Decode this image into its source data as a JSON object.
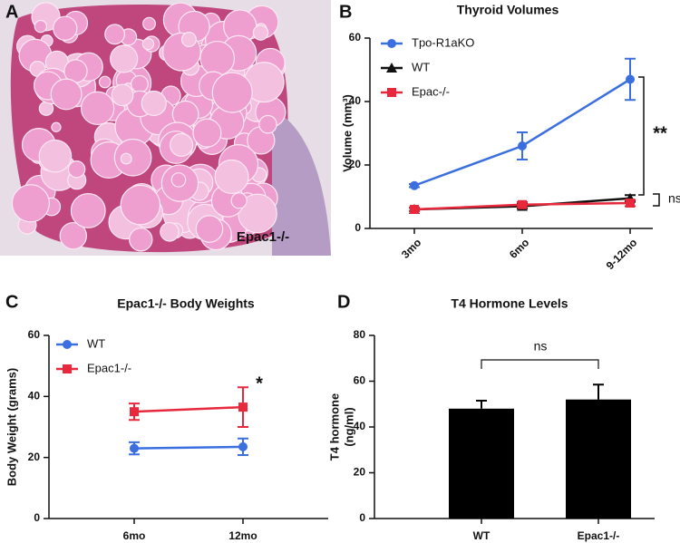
{
  "chart_data": [
    {
      "type": "image",
      "panel_label": "A",
      "annotation": "Epac1-/-"
    },
    {
      "type": "line",
      "panel_label": "B",
      "title": "Thyroid Volumes",
      "y_label": "Volume (mm³)",
      "categories": [
        "3mo",
        "6mo",
        "9-12mo"
      ],
      "series": [
        {
          "name": "Tpo-R1aKO",
          "color": "#3b6fe0",
          "marker": "circle",
          "values": [
            13.5,
            26,
            47
          ],
          "errors": [
            0.5,
            4.3,
            6.5
          ]
        },
        {
          "name": "WT",
          "color": "#111111",
          "marker": "triangle",
          "values": [
            6,
            7,
            9.5
          ],
          "errors": [
            0.5,
            0.7,
            1
          ]
        },
        {
          "name": "Epac-/-",
          "color": "#e8283c",
          "marker": "square",
          "values": [
            6,
            7.5,
            8
          ],
          "errors": [
            0.6,
            0.8,
            1
          ]
        }
      ],
      "ylim": [
        0,
        60
      ],
      "yticks": [
        0,
        20,
        40,
        60
      ],
      "annotations": [
        "**",
        "ns"
      ]
    },
    {
      "type": "line",
      "panel_label": "C",
      "title": "Epac1-/- Body Weights",
      "y_label": "Body Weight (grams)",
      "categories": [
        "6mo",
        "12mo"
      ],
      "series": [
        {
          "name": "WT",
          "color": "#3b6fe0",
          "marker": "circle",
          "values": [
            23,
            23.5
          ],
          "errors": [
            2,
            2.7
          ]
        },
        {
          "name": "Epac1-/-",
          "color": "#e8283c",
          "marker": "square",
          "values": [
            35,
            36.5
          ],
          "errors": [
            2.7,
            6.5
          ]
        }
      ],
      "ylim": [
        0,
        60
      ],
      "yticks": [
        0,
        20,
        40,
        60
      ],
      "annotations": [
        "*"
      ]
    },
    {
      "type": "bar",
      "panel_label": "D",
      "title": "T4 Hormone Levels",
      "y_label": [
        "T4 hormone",
        "(ng/ml)"
      ],
      "categories": [
        "WT",
        "Epac1-/-"
      ],
      "values": [
        48,
        52
      ],
      "errors": [
        3.5,
        6.5
      ],
      "color": "#000000",
      "ylim": [
        0,
        80
      ],
      "yticks": [
        0,
        20,
        40,
        60,
        80
      ],
      "annotations": [
        "ns"
      ]
    }
  ]
}
